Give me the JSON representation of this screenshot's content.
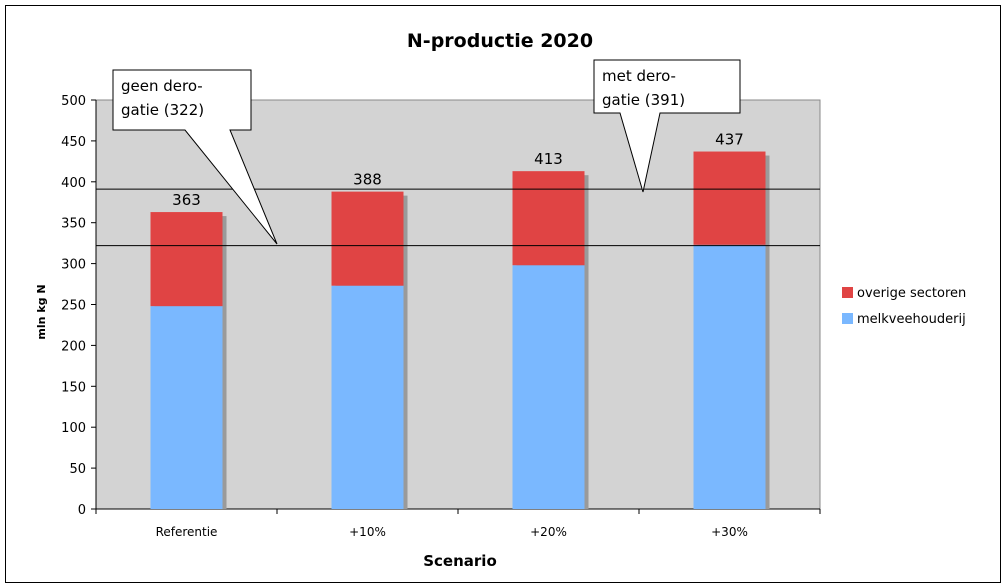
{
  "chart_data": {
    "type": "bar",
    "stacked": true,
    "title": "N-productie 2020",
    "xlabel": "Scenario",
    "ylabel": "mln kg N",
    "categories": [
      "Referentie",
      "+10%",
      "+20%",
      "+30%"
    ],
    "ylim": [
      0,
      500
    ],
    "yticks": [
      0,
      50,
      100,
      150,
      200,
      250,
      300,
      350,
      400,
      450,
      500
    ],
    "series": [
      {
        "name": "melkveehouderij",
        "color": "#7ab8ff",
        "values": [
          248,
          273,
          298,
          323
        ]
      },
      {
        "name": "overige sectoren",
        "color": "#e04444",
        "values": [
          115,
          115,
          115,
          114
        ]
      }
    ],
    "totals": [
      363,
      388,
      413,
      437
    ],
    "total_labels": [
      "363",
      "388",
      "413",
      "437"
    ],
    "reference_lines": [
      {
        "value": 322,
        "label_line1": "geen dero-",
        "label_line2": "gatie (322)"
      },
      {
        "value": 391,
        "label_line1": "met dero-",
        "label_line2": "gatie (391)"
      }
    ],
    "plot_background": "#d3d3d3",
    "grid": false,
    "legend_position": "right"
  }
}
